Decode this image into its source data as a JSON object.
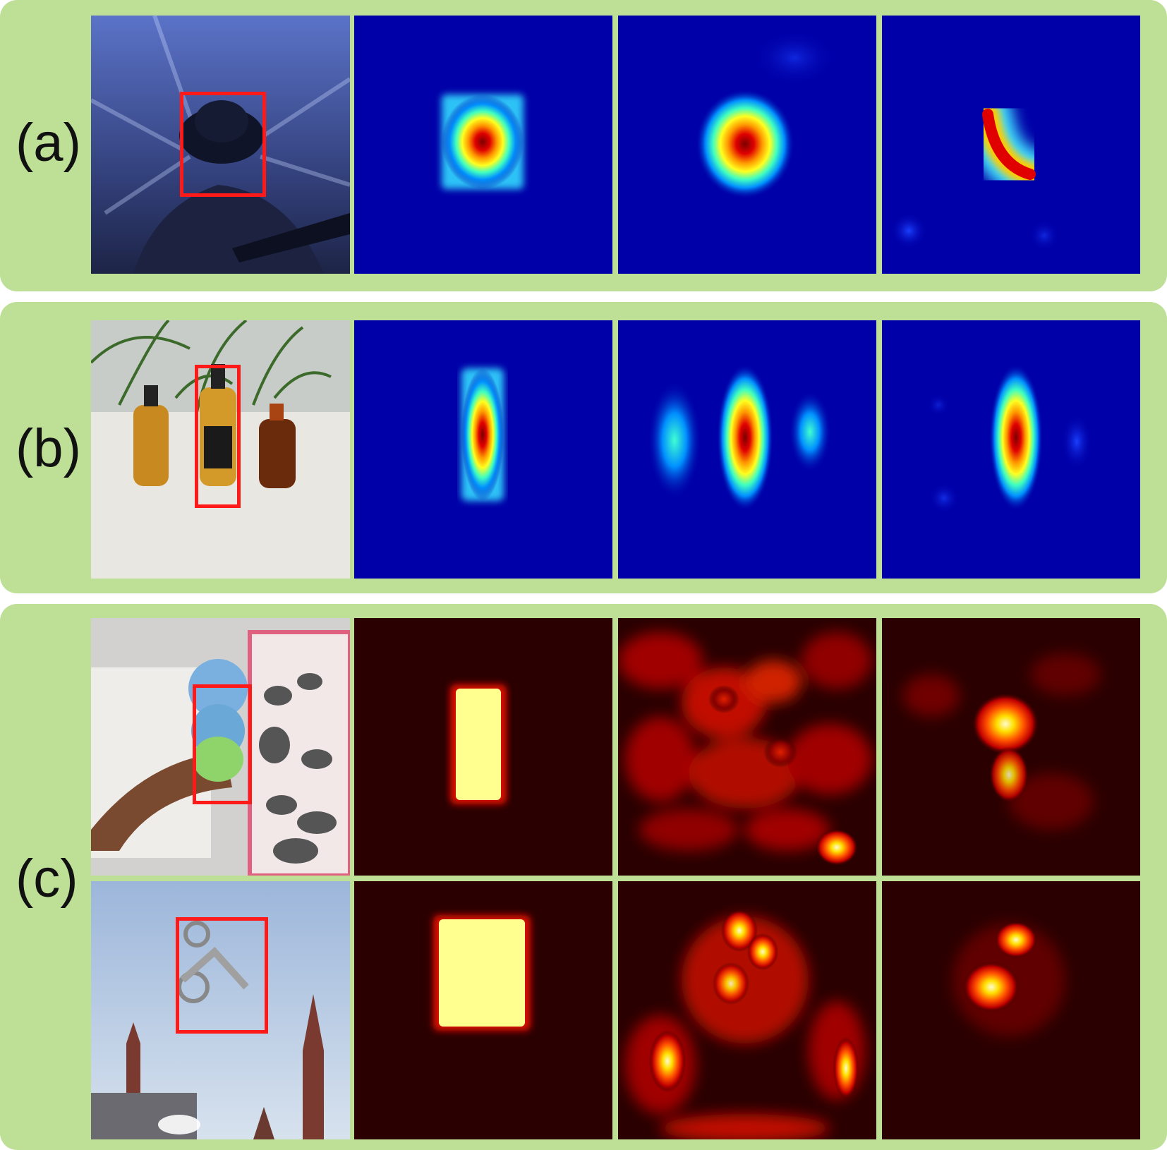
{
  "panels": [
    {
      "label": "(a)",
      "rows": [
        {
          "photo": "scene-singer-with-hat-and-guitar",
          "maps": [
            "ideal-gaussian-map",
            "learned-response-map",
            "refined-response-map"
          ],
          "colormap": "jet"
        }
      ]
    },
    {
      "label": "(b)",
      "rows": [
        {
          "photo": "scene-three-bottles-on-table",
          "maps": [
            "ideal-gaussian-map",
            "learned-response-map",
            "refined-response-map"
          ],
          "colormap": "jet"
        }
      ]
    },
    {
      "label": "(c)",
      "rows": [
        {
          "photo": "scene-toy-doll-on-wall",
          "maps": [
            "ideal-box-map",
            "learned-response-map",
            "refined-response-map"
          ],
          "colormap": "hot"
        },
        {
          "photo": "scene-motocross-jump-over-kremlin",
          "maps": [
            "ideal-box-map",
            "learned-response-map",
            "refined-response-map"
          ],
          "colormap": "hot"
        }
      ]
    }
  ],
  "colors": {
    "panel_bg": "#bddf96",
    "bbox": "#ff1a1a",
    "jet_bg": "#0000a8",
    "hot_bg": "#2a0000"
  }
}
